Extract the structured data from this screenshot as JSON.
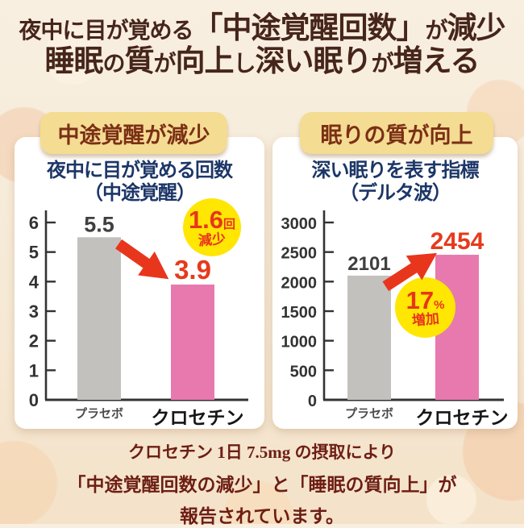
{
  "header": {
    "line1_segments": [
      {
        "t": "夜中に目が覚める",
        "size": "sm"
      },
      {
        "t": "「中途覚醒回数」",
        "size": "lg"
      },
      {
        "t": "が",
        "size": "sm"
      },
      {
        "t": "減少",
        "size": "lg"
      }
    ],
    "line2_segments": [
      {
        "t": "睡眠",
        "size": "lg"
      },
      {
        "t": "の",
        "size": "sm"
      },
      {
        "t": "質",
        "size": "lg"
      },
      {
        "t": "が",
        "size": "sm"
      },
      {
        "t": "向上",
        "size": "lg"
      },
      {
        "t": "し",
        "size": "sm"
      },
      {
        "t": "深い眠り",
        "size": "lg"
      },
      {
        "t": "が",
        "size": "sm"
      },
      {
        "t": "増える",
        "size": "lg"
      }
    ]
  },
  "panels": [
    {
      "badge": "中途覚醒が減少",
      "chart_title_line1": "夜中に目が覚める回数",
      "chart_title_line2": "（中途覚醒）",
      "highlight": {
        "value": "1.6",
        "unit": "回",
        "label": "減少"
      },
      "trend": "down"
    },
    {
      "badge": "眠りの質が向上",
      "chart_title_line1": "深い眠りを表す指標",
      "chart_title_line2": "（デルタ波）",
      "highlight": {
        "value": "17",
        "unit": "%",
        "label": "増加"
      },
      "trend": "up"
    }
  ],
  "chart_data": [
    {
      "type": "bar",
      "title": "夜中に目が覚める回数（中途覚醒）",
      "categories": [
        "プラセボ",
        "クロセチン"
      ],
      "values": [
        5.5,
        3.9
      ],
      "value_labels": [
        "5.5",
        "3.9"
      ],
      "ylim": [
        0,
        6
      ],
      "yticks": [
        0,
        1,
        2,
        3,
        4,
        5,
        6
      ],
      "annotation": "1.6回減少",
      "grid": false,
      "legend": false
    },
    {
      "type": "bar",
      "title": "深い眠りを表す指標（デルタ波）",
      "categories": [
        "プラセボ",
        "クロセチン"
      ],
      "values": [
        2101,
        2454
      ],
      "value_labels": [
        "2101",
        "2454"
      ],
      "ylim": [
        0,
        3000
      ],
      "yticks": [
        0,
        500,
        1000,
        1500,
        2000,
        2500,
        3000
      ],
      "annotation": "17%増加",
      "grid": false,
      "legend": false
    }
  ],
  "footer": {
    "line1": "クロセチン  1日 7.5mg の摂取により",
    "line2": "「中途覚醒回数の減少」と「睡眠の質向上」が",
    "line3": "報告されています。"
  },
  "colors": {
    "bar_placebo": "#c3c1be",
    "bar_crocetin": "#e879ae",
    "value_placebo": "#3f3f3f",
    "value_crocetin": "#e63a1c",
    "arrow": "#e8361d",
    "circle_bg": "#ffe603",
    "circle_text": "#e8351c",
    "badge_bg": "#f4dc92",
    "badge_text": "#7b2f15",
    "chart_title": "#1c3667",
    "header_text": "#46251b",
    "footer_text": "#6d1e14",
    "axis": "#333333",
    "category_placebo": "#4a4a4a",
    "category_crocetin": "#161616"
  }
}
